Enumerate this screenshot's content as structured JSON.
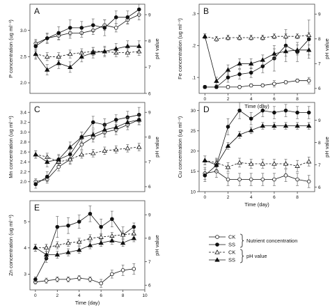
{
  "chart_data": [
    {
      "type": "line",
      "panel_label": "A",
      "ylabel": "P concentration (ug ml⁻¹)",
      "y2label": "pH value",
      "xlabel": "",
      "x_ticks": [],
      "xlim": [
        -0.5,
        9.5
      ],
      "ylim": [
        1.8,
        3.5
      ],
      "y_ticks": [
        2.0,
        2.5,
        3.0
      ],
      "y2lim": [
        6.0,
        9.4
      ],
      "y2_ticks": [
        6,
        7,
        8,
        9
      ],
      "series": [
        {
          "name": "CK",
          "axis": "left",
          "marker": "open-circle",
          "dash": "",
          "x": [
            0,
            1,
            2,
            3,
            4,
            5,
            6,
            7,
            8,
            9
          ],
          "y": [
            2.75,
            2.85,
            2.9,
            2.95,
            2.95,
            3.0,
            3.1,
            3.05,
            3.2,
            3.3
          ],
          "err": [
            0.08,
            0.08,
            0.08,
            0.1,
            0.08,
            0.08,
            0.1,
            0.08,
            0.08,
            0.1
          ]
        },
        {
          "name": "SS",
          "axis": "left",
          "marker": "filled-circle",
          "dash": "",
          "x": [
            0,
            1,
            2,
            3,
            4,
            5,
            6,
            7,
            8,
            9
          ],
          "y": [
            2.7,
            2.85,
            2.95,
            3.05,
            3.05,
            3.1,
            3.05,
            3.25,
            3.25,
            3.4
          ],
          "err": [
            0.1,
            0.1,
            0.12,
            0.15,
            0.12,
            0.12,
            0.15,
            0.12,
            0.12,
            0.1
          ]
        },
        {
          "name": "CK",
          "axis": "right",
          "marker": "open-triangle",
          "dash": "3,2",
          "x": [
            0,
            1,
            2,
            3,
            4,
            5,
            6,
            7,
            8,
            9
          ],
          "y": [
            7.5,
            7.4,
            7.4,
            7.5,
            7.55,
            7.6,
            7.6,
            7.55,
            7.55,
            7.6
          ],
          "err": [
            0.15,
            0.15,
            0.15,
            0.15,
            0.15,
            0.15,
            0.15,
            0.15,
            0.15,
            0.15
          ]
        },
        {
          "name": "SS",
          "axis": "right",
          "marker": "filled-triangle",
          "dash": "",
          "x": [
            0,
            1,
            2,
            3,
            4,
            5,
            6,
            7,
            8,
            9
          ],
          "y": [
            7.5,
            6.9,
            7.15,
            7.0,
            7.4,
            7.55,
            7.6,
            7.7,
            7.8,
            7.8
          ],
          "err": [
            0.2,
            0.2,
            0.2,
            0.2,
            0.2,
            0.2,
            0.2,
            0.2,
            0.2,
            0.2
          ]
        }
      ]
    },
    {
      "type": "line",
      "panel_label": "B",
      "ylabel": "Fe concentration (ug ml⁻¹)",
      "y2label": "pH value",
      "xlabel": "Time (day)",
      "x_ticks": [
        0,
        2,
        4,
        6,
        8
      ],
      "xlim": [
        -0.5,
        9.5
      ],
      "ylim": [
        0.05,
        0.33
      ],
      "y_ticks": [
        0.1,
        0.2,
        0.3
      ],
      "y_tick_labels": [
        ".1",
        ".2",
        ".3"
      ],
      "y2lim": [
        5.8,
        9.4
      ],
      "y2_ticks": [
        6,
        7,
        8,
        9
      ],
      "series": [
        {
          "name": "CK",
          "axis": "left",
          "marker": "open-circle",
          "dash": "",
          "x": [
            0,
            1,
            2,
            3,
            4,
            5,
            6,
            7,
            8,
            9
          ],
          "y": [
            0.07,
            0.07,
            0.07,
            0.07,
            0.075,
            0.075,
            0.08,
            0.085,
            0.09,
            0.09
          ],
          "err": [
            0.005,
            0.005,
            0.005,
            0.005,
            0.005,
            0.005,
            0.01,
            0.005,
            0.005,
            0.01
          ]
        },
        {
          "name": "SS",
          "axis": "left",
          "marker": "filled-circle",
          "dash": "",
          "x": [
            0,
            1,
            2,
            3,
            4,
            5,
            6,
            7,
            8,
            9
          ],
          "y": [
            0.07,
            0.07,
            0.1,
            0.11,
            0.115,
            0.135,
            0.16,
            0.2,
            0.18,
            0.22
          ],
          "err": [
            0.005,
            0.005,
            0.015,
            0.015,
            0.015,
            0.02,
            0.04,
            0.05,
            0.03,
            0.06
          ]
        },
        {
          "name": "CK",
          "axis": "right",
          "marker": "open-triangle",
          "dash": "3,2",
          "x": [
            0,
            1,
            2,
            3,
            4,
            5,
            6,
            7,
            8,
            9
          ],
          "y": [
            8.1,
            8.0,
            8.05,
            8.05,
            8.05,
            8.05,
            8.1,
            8.1,
            8.1,
            8.15
          ],
          "err": [
            0.1,
            0.1,
            0.1,
            0.1,
            0.1,
            0.1,
            0.1,
            0.1,
            0.1,
            0.1
          ]
        },
        {
          "name": "SS",
          "axis": "right",
          "marker": "filled-triangle",
          "dash": "",
          "x": [
            0,
            1,
            2,
            3,
            4,
            5,
            6,
            7,
            8,
            9
          ],
          "y": [
            8.1,
            6.3,
            6.75,
            7.0,
            7.0,
            7.15,
            7.4,
            7.5,
            7.55,
            7.55
          ],
          "err": [
            0.1,
            0.15,
            0.2,
            0.2,
            0.2,
            0.2,
            0.2,
            0.2,
            0.2,
            0.2
          ]
        }
      ]
    },
    {
      "type": "line",
      "panel_label": "C",
      "ylabel": "Mn concentration (ug ml⁻¹)",
      "y2label": "pH value",
      "xlabel": "",
      "x_ticks": [],
      "xlim": [
        -0.5,
        9.5
      ],
      "ylim": [
        1.8,
        3.6
      ],
      "y_ticks": [
        2.0,
        2.2,
        2.4,
        2.6,
        2.8,
        3.0,
        3.2,
        3.4
      ],
      "y2lim": [
        5.8,
        9.4
      ],
      "y2_ticks": [
        6,
        7,
        8,
        9
      ],
      "series": [
        {
          "name": "CK",
          "axis": "left",
          "marker": "open-circle",
          "dash": "",
          "x": [
            0,
            1,
            2,
            3,
            4,
            5,
            6,
            7,
            8,
            9
          ],
          "y": [
            2.0,
            2.05,
            2.3,
            2.45,
            2.75,
            2.9,
            3.0,
            3.05,
            3.15,
            3.25
          ],
          "err": [
            0.06,
            0.08,
            0.08,
            0.1,
            0.1,
            0.1,
            0.1,
            0.1,
            0.1,
            0.1
          ]
        },
        {
          "name": "SS",
          "axis": "left",
          "marker": "filled-circle",
          "dash": "",
          "x": [
            0,
            1,
            2,
            3,
            4,
            5,
            6,
            7,
            8,
            9
          ],
          "y": [
            1.95,
            2.1,
            2.45,
            2.55,
            2.9,
            3.2,
            3.15,
            3.25,
            3.3,
            3.35
          ],
          "err": [
            0.08,
            0.1,
            0.1,
            0.1,
            0.1,
            0.12,
            0.12,
            0.1,
            0.12,
            0.15
          ]
        },
        {
          "name": "CK",
          "axis": "right",
          "marker": "open-triangle",
          "dash": "3,2",
          "x": [
            0,
            1,
            2,
            3,
            4,
            5,
            6,
            7,
            8,
            9
          ],
          "y": [
            7.3,
            7.2,
            7.0,
            7.1,
            7.3,
            7.35,
            7.45,
            7.5,
            7.55,
            7.6
          ],
          "err": [
            0.15,
            0.15,
            0.15,
            0.15,
            0.15,
            0.15,
            0.15,
            0.15,
            0.15,
            0.15
          ]
        },
        {
          "name": "SS",
          "axis": "right",
          "marker": "filled-triangle",
          "dash": "",
          "x": [
            0,
            1,
            2,
            3,
            4,
            5,
            6,
            7,
            8,
            9
          ],
          "y": [
            7.3,
            7.0,
            7.1,
            7.6,
            8.0,
            8.1,
            8.3,
            8.4,
            8.6,
            8.7
          ],
          "err": [
            0.15,
            0.2,
            0.15,
            0.2,
            0.2,
            0.2,
            0.2,
            0.2,
            0.2,
            0.2
          ]
        }
      ]
    },
    {
      "type": "line",
      "panel_label": "D",
      "ylabel": "Cu concentration (ug ml⁻¹)",
      "y2label": "pH value",
      "xlabel": "Time (day)",
      "x_ticks": [
        0,
        2,
        4,
        6,
        8
      ],
      "xlim": [
        -0.5,
        9.5
      ],
      "ylim": [
        10,
        32
      ],
      "y_ticks": [
        10,
        15,
        20,
        25,
        30
      ],
      "y2lim": [
        5.8,
        9.8
      ],
      "y2_ticks": [
        6,
        7,
        8,
        9
      ],
      "series": [
        {
          "name": "CK",
          "axis": "left",
          "marker": "open-circle",
          "dash": "",
          "x": [
            0,
            1,
            2,
            3,
            4,
            5,
            6,
            7,
            8,
            9
          ],
          "y": [
            14.5,
            15,
            13,
            13,
            13,
            13,
            13,
            14,
            13,
            12.5
          ],
          "err": [
            1.5,
            1.5,
            1.5,
            1.5,
            1.5,
            1.5,
            1.5,
            1.5,
            1.5,
            1.5
          ]
        },
        {
          "name": "SS",
          "axis": "left",
          "marker": "filled-circle",
          "dash": "",
          "x": [
            0,
            1,
            2,
            3,
            4,
            5,
            6,
            7,
            8,
            9
          ],
          "y": [
            14,
            16.5,
            26,
            30,
            28,
            30,
            29.5,
            30,
            29.5,
            29.5
          ],
          "err": [
            1.5,
            1.5,
            2,
            2,
            1.5,
            1.5,
            1.5,
            1.5,
            1.5,
            1.5
          ]
        },
        {
          "name": "CK",
          "axis": "right",
          "marker": "open-triangle",
          "dash": "3,2",
          "x": [
            0,
            1,
            2,
            3,
            4,
            5,
            6,
            7,
            8,
            9
          ],
          "y": [
            7.2,
            7.1,
            6.9,
            7.1,
            7.05,
            7.05,
            7.05,
            7.05,
            6.95,
            7.15
          ],
          "err": [
            0.2,
            0.2,
            0.2,
            0.2,
            0.2,
            0.2,
            0.2,
            0.2,
            0.25,
            0.2
          ]
        },
        {
          "name": "SS",
          "axis": "right",
          "marker": "filled-triangle",
          "dash": "",
          "x": [
            0,
            1,
            2,
            3,
            4,
            5,
            6,
            7,
            8,
            9
          ],
          "y": [
            7.2,
            7.0,
            7.85,
            8.35,
            8.55,
            8.75,
            8.75,
            8.75,
            8.75,
            8.75
          ],
          "err": [
            0.2,
            0.2,
            0.15,
            0.15,
            0.15,
            0.15,
            0.15,
            0.15,
            0.15,
            0.15
          ]
        }
      ]
    },
    {
      "type": "line",
      "panel_label": "E",
      "ylabel": "Zn concentration (ug ml⁻¹)",
      "y2label": "pH value",
      "xlabel": "Time (day)",
      "x_ticks": [
        0,
        2,
        4,
        6,
        8,
        10
      ],
      "xlim": [
        -0.5,
        10
      ],
      "ylim": [
        2.4,
        5.8
      ],
      "y_ticks": [
        3,
        4,
        5
      ],
      "y2lim": [
        5.8,
        9.6
      ],
      "y2_ticks": [
        6,
        7,
        8,
        9
      ],
      "series": [
        {
          "name": "CK",
          "axis": "left",
          "marker": "open-circle",
          "dash": "",
          "x": [
            0,
            1,
            2,
            3,
            4,
            5,
            6,
            7,
            8,
            9
          ],
          "y": [
            2.7,
            2.75,
            2.8,
            2.8,
            2.85,
            2.8,
            2.65,
            3.0,
            3.15,
            3.2
          ],
          "err": [
            0.08,
            0.1,
            0.1,
            0.1,
            0.1,
            0.1,
            0.15,
            0.15,
            0.2,
            0.2
          ]
        },
        {
          "name": "SS",
          "axis": "left",
          "marker": "filled-circle",
          "dash": "",
          "x": [
            0,
            1,
            2,
            3,
            4,
            5,
            6,
            7,
            8,
            9
          ],
          "y": [
            2.8,
            3.6,
            4.8,
            4.85,
            5.0,
            5.3,
            4.8,
            5.1,
            4.5,
            4.8
          ],
          "err": [
            0.1,
            0.15,
            0.4,
            0.3,
            0.25,
            0.3,
            0.3,
            0.3,
            0.3,
            0.15
          ]
        },
        {
          "name": "CK",
          "axis": "right",
          "marker": "open-triangle",
          "dash": "3,2",
          "x": [
            0,
            1,
            2,
            3,
            4,
            5,
            6,
            7,
            8,
            9
          ],
          "y": [
            7.6,
            7.6,
            7.7,
            7.8,
            7.85,
            8.0,
            8.05,
            8.1,
            8.15,
            8.2
          ],
          "err": [
            0.15,
            0.15,
            0.15,
            0.15,
            0.15,
            0.15,
            0.15,
            0.15,
            0.15,
            0.15
          ]
        },
        {
          "name": "SS",
          "axis": "right",
          "marker": "filled-triangle",
          "dash": "",
          "x": [
            0,
            1,
            2,
            3,
            4,
            5,
            6,
            7,
            8,
            9
          ],
          "y": [
            7.6,
            7.3,
            7.3,
            7.4,
            7.5,
            7.7,
            7.8,
            7.9,
            7.8,
            8.0
          ],
          "err": [
            0.15,
            0.15,
            0.15,
            0.15,
            0.15,
            0.15,
            0.15,
            0.15,
            0.15,
            0.15
          ]
        }
      ]
    }
  ],
  "legend": {
    "items": [
      {
        "label": "CK",
        "marker": "open-circle",
        "dash": ""
      },
      {
        "label": "SS",
        "marker": "filled-circle",
        "dash": ""
      },
      {
        "label": "CK",
        "marker": "open-triangle",
        "dash": "3,2"
      },
      {
        "label": "SS",
        "marker": "filled-triangle",
        "dash": ""
      }
    ],
    "group1": "Nutrient concentration",
    "group2": "pH value"
  }
}
